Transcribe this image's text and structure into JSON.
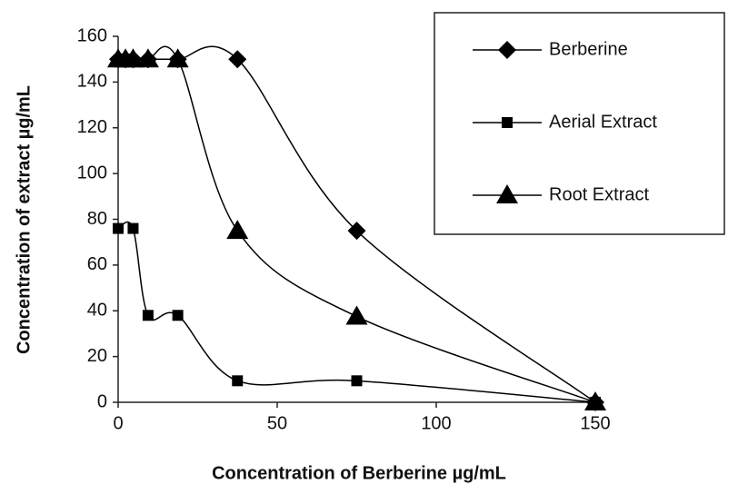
{
  "chart_data": {
    "type": "line",
    "xlabel": "Concentration of Berberine µg/mL",
    "ylabel": "Concentration of extract  µg/mL",
    "xlim": [
      0,
      150
    ],
    "xticks": [
      0,
      50,
      100,
      150
    ],
    "ylim": [
      0,
      160
    ],
    "yticks": [
      0,
      20,
      40,
      60,
      80,
      100,
      120,
      140,
      160
    ],
    "grid": false,
    "legend": "upper right",
    "smooth": true,
    "series": [
      {
        "name": "Berberine",
        "color": "#000000",
        "marker": "diamond",
        "x": [
          0,
          2.3,
          4.7,
          9.4,
          18.75,
          37.5,
          75,
          150
        ],
        "values": [
          150,
          150,
          150,
          150,
          150,
          150,
          75,
          0
        ]
      },
      {
        "name": "Aerial Extract",
        "color": "#000000",
        "marker": "square",
        "x": [
          0,
          4.7,
          9.4,
          18.75,
          37.5,
          75,
          150
        ],
        "values": [
          76,
          76,
          38,
          38,
          9.4,
          9.4,
          0
        ]
      },
      {
        "name": "Root Extract",
        "color": "#000000",
        "marker": "triangle",
        "x": [
          0,
          2.3,
          4.7,
          9.4,
          18.75,
          37.5,
          75,
          150
        ],
        "values": [
          150,
          150,
          150,
          150,
          150,
          75,
          37.5,
          0
        ]
      }
    ]
  }
}
